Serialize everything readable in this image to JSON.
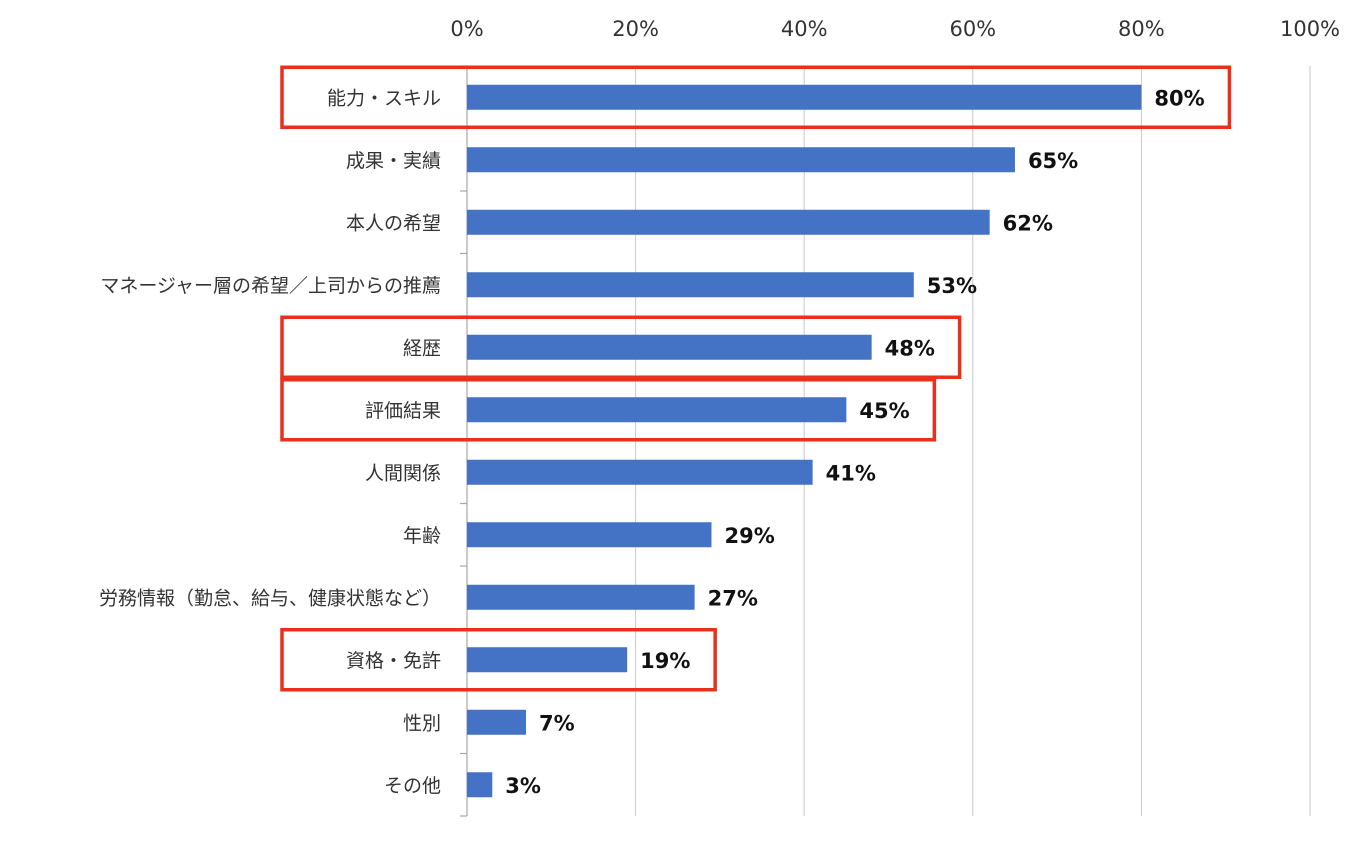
{
  "colors": {
    "bar": "#4472C4",
    "highlight": "#E8301C",
    "grid": "#c8c8c8",
    "axis": "#a6a6a6"
  },
  "chart_data": {
    "type": "bar",
    "orientation": "horizontal",
    "xlim": [
      0,
      100
    ],
    "x_ticks": [
      "0%",
      "20%",
      "40%",
      "60%",
      "80%",
      "100%"
    ],
    "x_tick_values": [
      0,
      20,
      40,
      60,
      80,
      100
    ],
    "grid": true,
    "categories": [
      "能力・スキル",
      "成果・実績",
      "本人の希望",
      "マネージャー層の希望／上司からの推薦",
      "経歴",
      "評価結果",
      "人間関係",
      "年齢",
      "労務情報（勤怠、給与、健康状態など）",
      "資格・免許",
      "性別",
      "その他"
    ],
    "values": [
      80,
      65,
      62,
      53,
      48,
      45,
      41,
      29,
      27,
      19,
      7,
      3
    ],
    "value_labels": [
      "80%",
      "65%",
      "62%",
      "53%",
      "48%",
      "45%",
      "41%",
      "29%",
      "27%",
      "19%",
      "7%",
      "3%"
    ],
    "highlighted": [
      "能力・スキル",
      "経歴",
      "評価結果",
      "資格・免許"
    ]
  }
}
